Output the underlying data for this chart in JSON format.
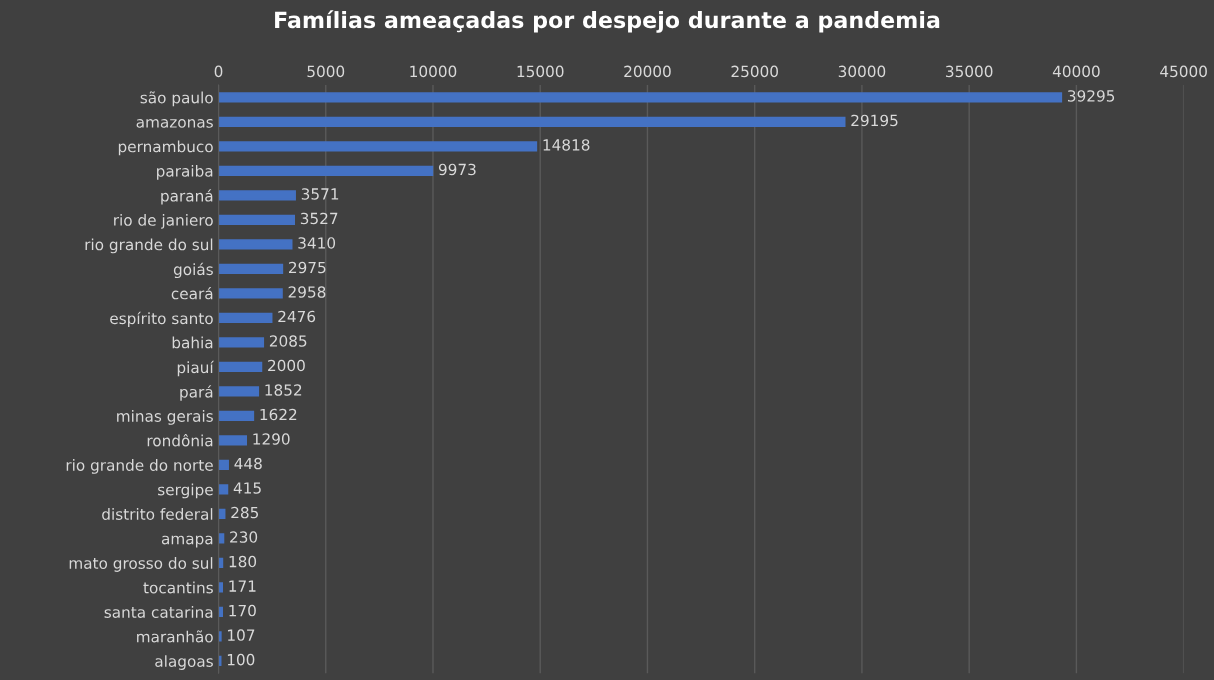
{
  "chart_data": {
    "type": "bar",
    "orientation": "horizontal",
    "title": "Famílias ameaçadas por despejo durante a pandemia",
    "categories": [
      "são paulo",
      "amazonas",
      "pernambuco",
      "paraiba",
      "paraná",
      "rio de janiero",
      "rio grande do sul",
      "goiás",
      "ceará",
      "espírito santo",
      "bahia",
      "piauí",
      "pará",
      "minas gerais",
      "rondônia",
      "rio grande do norte",
      "sergipe",
      "distrito federal",
      "amapa",
      "mato grosso do sul",
      "tocantins",
      "santa catarina",
      "maranhão",
      "alagoas"
    ],
    "values": [
      39295,
      29195,
      14818,
      9973,
      3571,
      3527,
      3410,
      2975,
      2958,
      2476,
      2085,
      2000,
      1852,
      1622,
      1290,
      448,
      415,
      285,
      230,
      180,
      171,
      170,
      107,
      100
    ],
    "color": "#4472c4",
    "xlim": [
      0,
      45000
    ],
    "xticks": [
      0,
      5000,
      10000,
      15000,
      20000,
      25000,
      30000,
      35000,
      40000,
      45000
    ],
    "grid": "x",
    "data_labels": true
  }
}
